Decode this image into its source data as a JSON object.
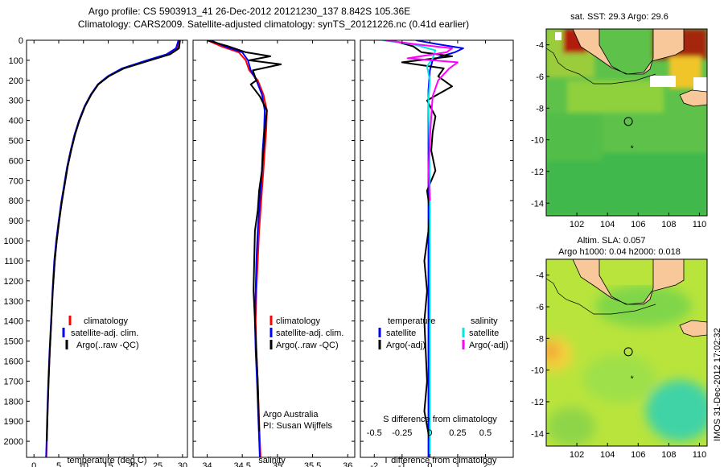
{
  "header": {
    "line1": "Argo profile: CS 5903913_41 26-Dec-2012 20121230_137 8.842S 105.36E",
    "line2": "Climatology: CARS2009. Satellite-adjusted climatology: synTS_20121226.nc (0.41d earlier)"
  },
  "footer": {
    "watermark": "IMOS 31-Dec-2012 17:02:32",
    "credit1": "Argo Australia",
    "credit2": "PI: Susan Wijffels"
  },
  "colors": {
    "climatology": "#ff0000",
    "satellite": "#0000ff",
    "argo": "#000000",
    "salinity_satellite": "#00e5e5",
    "salinity_argo": "#ff00ff",
    "land": "#f9c89a",
    "coast": "#000000"
  },
  "chart_data": [
    {
      "id": "temperature-profile",
      "type": "line",
      "xlabel": "temperature (deg C)",
      "ylabel": "",
      "xlim": [
        -1.5,
        31
      ],
      "ylim": [
        2080,
        0
      ],
      "xticks": [
        0,
        5,
        10,
        15,
        20,
        25,
        30
      ],
      "xtick_labels": [
        "0",
        "5",
        "10",
        "15",
        "20",
        "25",
        "30"
      ],
      "yticks": [
        0,
        100,
        200,
        300,
        400,
        500,
        600,
        700,
        800,
        900,
        1000,
        1100,
        1200,
        1300,
        1400,
        1500,
        1600,
        1700,
        1800,
        1900,
        2000
      ],
      "legend": {
        "position": "lower-center",
        "entries": [
          "climatology",
          "satellite-adj. clim.",
          "Argo(..raw -QC)"
        ]
      },
      "series": [
        {
          "name": "climatology",
          "color": "#ff0000",
          "x": [
            29.4,
            29.0,
            27.0,
            23.0,
            18.0,
            15.0,
            13.0,
            11.6,
            10.3,
            9.2,
            8.3,
            7.5,
            6.8,
            6.2,
            5.6,
            5.1,
            4.6,
            4.2,
            3.8,
            3.5,
            3.2,
            2.95,
            2.75,
            2.6,
            2.5
          ],
          "y": [
            0,
            40,
            70,
            100,
            140,
            180,
            220,
            270,
            330,
            400,
            470,
            550,
            630,
            720,
            810,
            900,
            1000,
            1100,
            1250,
            1400,
            1550,
            1700,
            1850,
            2000,
            2080
          ]
        },
        {
          "name": "satellite-adj. clim.",
          "color": "#0000ff",
          "x": [
            29.2,
            28.7,
            26.8,
            22.8,
            17.8,
            14.9,
            12.9,
            11.5,
            10.2,
            9.1,
            8.2,
            7.4,
            6.7,
            6.1,
            5.5,
            5.0,
            4.5,
            4.1,
            3.75,
            3.45,
            3.15,
            2.9,
            2.7,
            2.55,
            2.45
          ],
          "y": [
            0,
            40,
            70,
            100,
            140,
            180,
            220,
            270,
            330,
            400,
            470,
            550,
            630,
            720,
            810,
            900,
            1000,
            1100,
            1250,
            1400,
            1550,
            1700,
            1850,
            2000,
            2080
          ]
        },
        {
          "name": "Argo(..raw -QC)",
          "color": "#000000",
          "x": [
            29.5,
            29.3,
            27.5,
            23.5,
            18.2,
            15.1,
            13.0,
            11.6,
            10.3,
            9.2,
            8.3,
            7.5,
            6.8,
            6.2,
            5.6,
            5.1,
            4.6,
            4.2,
            3.8,
            3.5,
            3.2,
            2.95,
            2.75,
            2.6
          ],
          "y": [
            0,
            40,
            70,
            100,
            140,
            180,
            220,
            270,
            330,
            400,
            470,
            550,
            630,
            720,
            810,
            900,
            1000,
            1100,
            1250,
            1400,
            1550,
            1700,
            1850,
            2000
          ]
        }
      ]
    },
    {
      "id": "salinity-profile",
      "type": "line",
      "xlabel": "salinity",
      "ylabel": "",
      "xlim": [
        33.8,
        36.1
      ],
      "ylim": [
        2080,
        0
      ],
      "xticks": [
        34,
        34.5,
        35,
        35.5,
        36
      ],
      "xtick_labels": [
        "34",
        "34.5",
        "35",
        "35.5",
        "36"
      ],
      "legend": {
        "position": "lower-center",
        "entries": [
          "climatology",
          "satellite-adj. clim.",
          "Argo(..raw -QC)"
        ]
      },
      "series": [
        {
          "name": "climatology",
          "color": "#ff0000",
          "x": [
            34.0,
            34.2,
            34.45,
            34.55,
            34.6,
            34.72,
            34.8,
            34.85,
            34.84,
            34.82,
            34.8,
            34.78,
            34.76,
            34.74,
            34.72,
            34.7,
            34.69,
            34.7,
            34.72,
            34.74,
            34.76
          ],
          "y": [
            0,
            30,
            60,
            100,
            150,
            200,
            270,
            350,
            450,
            550,
            650,
            750,
            850,
            950,
            1100,
            1250,
            1400,
            1550,
            1700,
            1900,
            2080
          ]
        },
        {
          "name": "satellite-adj. clim.",
          "color": "#0000ff",
          "x": [
            34.05,
            34.25,
            34.5,
            34.58,
            34.62,
            34.7,
            34.78,
            34.82,
            34.81,
            34.79,
            34.78,
            34.76,
            34.74,
            34.72,
            34.7,
            34.69,
            34.68,
            34.69,
            34.71,
            34.73,
            34.75
          ],
          "y": [
            0,
            30,
            60,
            100,
            150,
            200,
            270,
            350,
            450,
            550,
            650,
            750,
            850,
            950,
            1100,
            1250,
            1400,
            1550,
            1700,
            1900,
            2080
          ]
        },
        {
          "name": "Argo(..raw -QC)",
          "color": "#000000",
          "x": [
            34.0,
            34.3,
            34.55,
            34.9,
            34.6,
            35.05,
            34.65,
            34.7,
            34.62,
            34.75,
            34.85,
            34.82,
            34.8,
            34.78,
            34.74,
            34.72,
            34.68,
            34.67,
            34.66,
            34.68,
            34.7,
            34.72,
            34.74
          ],
          "y": [
            0,
            30,
            60,
            80,
            100,
            120,
            150,
            200,
            220,
            280,
            350,
            450,
            550,
            650,
            750,
            850,
            950,
            1100,
            1250,
            1400,
            1550,
            1700,
            1950
          ]
        }
      ]
    },
    {
      "id": "difference-profile",
      "type": "line",
      "xlabel": "T difference from climatology",
      "x2label": "S difference from climatology",
      "ylabel": "",
      "xlim": [
        -2.5,
        3
      ],
      "ylim": [
        2080,
        0
      ],
      "xticks": [
        -2,
        -1,
        0,
        1,
        2
      ],
      "xtick_labels": [
        "-2",
        "-1",
        "0",
        "1",
        "2"
      ],
      "x2ticks": [
        -2,
        -1,
        0,
        1,
        2
      ],
      "x2tick_labels": [
        "-0.5",
        "-0.25",
        "0",
        "0.25",
        "0.5"
      ],
      "legend": {
        "position": "lower-center",
        "headers": [
          "temperature",
          "salinity"
        ],
        "entries": [
          "satellite",
          "Argo(-adj)",
          "satellite",
          "Argo(-adj)"
        ]
      },
      "series": [
        {
          "name": "temperature satellite",
          "color": "#0000ff",
          "x": [
            -0.5,
            0.3,
            1.2,
            0.9,
            0.4,
            0.1,
            0.0,
            -0.05,
            -0.05,
            -0.05,
            -0.05,
            -0.05,
            -0.05,
            -0.05
          ],
          "y": [
            0,
            20,
            40,
            60,
            80,
            100,
            150,
            250,
            400,
            600,
            900,
            1300,
            1700,
            2080
          ]
        },
        {
          "name": "temperature Argo(-adj)",
          "color": "#000000",
          "x": [
            -1.4,
            -0.6,
            -0.3,
            0.8,
            -1.0,
            0.5,
            0.3,
            0.8,
            -0.1,
            0.2,
            0.1,
            0.05,
            0.2,
            -0.1,
            0.0,
            -0.05,
            -0.2,
            -0.1,
            -0.2,
            -0.15,
            -0.1,
            -0.2,
            0.0
          ],
          "y": [
            0,
            30,
            60,
            80,
            110,
            140,
            180,
            230,
            300,
            380,
            460,
            550,
            650,
            750,
            850,
            950,
            1100,
            1250,
            1400,
            1550,
            1700,
            1850,
            2000
          ]
        },
        {
          "name": "salinity satellite",
          "color": "#00e5e5",
          "x": [
            -1.7,
            -0.6,
            0.2,
            0.1,
            -0.1,
            0.0,
            -0.05,
            -0.02,
            0.0,
            0.0,
            0.0,
            0.0
          ],
          "y": [
            0,
            20,
            50,
            90,
            130,
            200,
            300,
            500,
            800,
            1200,
            1700,
            2080
          ]
        },
        {
          "name": "salinity Argo(-adj)",
          "color": "#ff00ff",
          "x": [
            -1.6,
            -0.5,
            0.8,
            0.6,
            -0.8,
            1.0,
            0.7,
            0.3,
            0.1,
            0.05,
            0.0,
            -0.05,
            0.0
          ],
          "y": [
            0,
            20,
            40,
            60,
            90,
            110,
            140,
            200,
            280,
            380,
            500,
            650,
            800
          ]
        }
      ]
    },
    {
      "id": "sst-map",
      "type": "heatmap",
      "title": "sat. SST: 29.3  Argo: 29.6",
      "xlim": [
        100,
        110.5
      ],
      "ylim": [
        -14.8,
        -3
      ],
      "xticks": [
        102,
        104,
        106,
        108,
        110
      ],
      "xtick_labels": [
        "102",
        "104",
        "106",
        "108",
        "110"
      ],
      "yticks": [
        -4,
        -6,
        -8,
        -10,
        -12,
        -14
      ],
      "ytick_labels": [
        "-4",
        "-6",
        "-8",
        "-10",
        "-12",
        "-14"
      ],
      "marker": {
        "lon": 105.36,
        "lat": -8.842
      },
      "star": {
        "lon": 105.6,
        "lat": -10.4
      }
    },
    {
      "id": "sla-map",
      "type": "heatmap",
      "title": "Altim. SLA: 0.057",
      "subtitle": "Argo h1000: 0.04 h2000: 0.018",
      "xlim": [
        100,
        110.5
      ],
      "ylim": [
        -14.8,
        -3
      ],
      "xticks": [
        102,
        104,
        106,
        108,
        110
      ],
      "xtick_labels": [
        "102",
        "104",
        "106",
        "108",
        "110"
      ],
      "yticks": [
        -4,
        -6,
        -8,
        -10,
        -12,
        -14
      ],
      "ytick_labels": [
        "-4",
        "-6",
        "-8",
        "-10",
        "-12",
        "-14"
      ],
      "marker": {
        "lon": 105.36,
        "lat": -8.842
      },
      "star": {
        "lon": 105.6,
        "lat": -10.4
      }
    }
  ]
}
